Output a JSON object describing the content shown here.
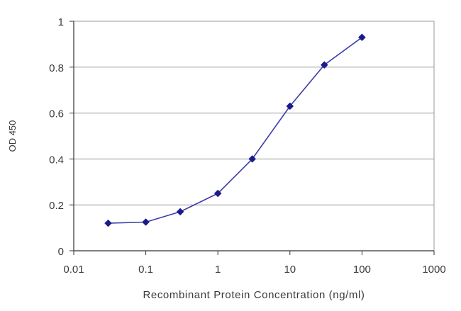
{
  "chart_data": {
    "type": "line",
    "xlabel": "Recombinant Protein Concentration (ng/ml)",
    "ylabel": "OD 450",
    "x_scale": "log",
    "xlim": [
      0.01,
      1000
    ],
    "ylim": [
      0,
      1
    ],
    "x_ticks": [
      0.01,
      0.1,
      1,
      10,
      100,
      1000
    ],
    "x_tick_labels": [
      "0.01",
      "0.1",
      "1",
      "10",
      "100",
      "1000"
    ],
    "y_ticks": [
      0,
      0.2,
      0.4,
      0.6,
      0.8,
      1
    ],
    "y_tick_labels": [
      "0",
      "0.2",
      "0.4",
      "0.6",
      "0.8",
      "1"
    ],
    "grid": "horizontal",
    "legend": "none",
    "series": [
      {
        "x": [
          0.03,
          0.1,
          0.3,
          1,
          3,
          10,
          30,
          100
        ],
        "y": [
          0.12,
          0.125,
          0.17,
          0.25,
          0.4,
          0.63,
          0.81,
          0.93
        ]
      }
    ],
    "colors": {
      "line": "#3c3ca8",
      "marker": "#1a1a8c",
      "grid": "#9a9a9a",
      "axis": "#333333",
      "text": "#3a3a3a"
    }
  }
}
